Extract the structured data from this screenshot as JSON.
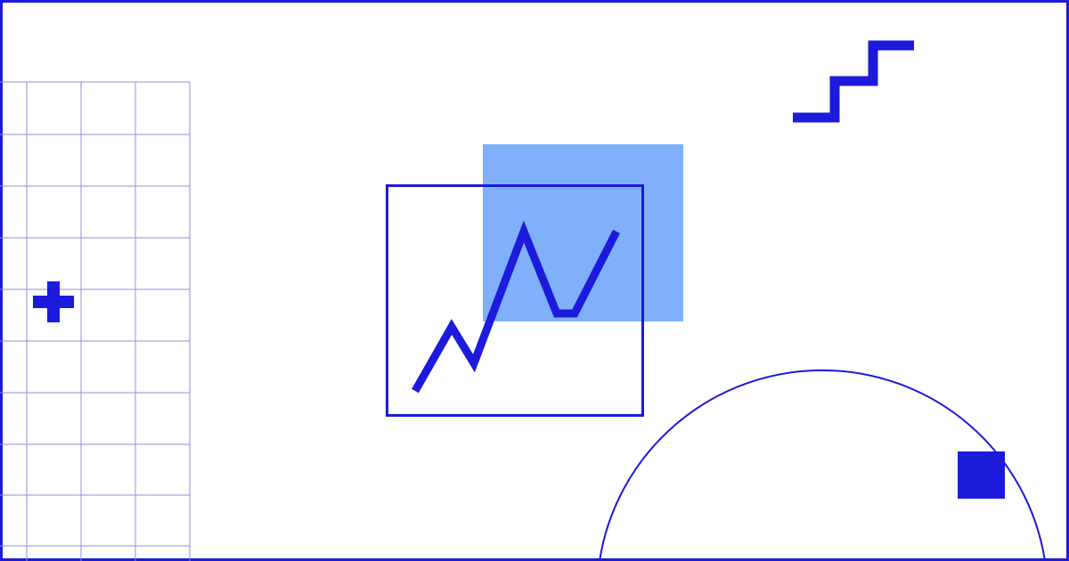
{
  "illustration": {
    "colors": {
      "background": "#ffffff",
      "primary": "#1c1adb",
      "accent_fill": "#80b0fc",
      "grid_line": "#8f8fd9"
    },
    "icons": {
      "plus": "plus-icon",
      "trend_line": "trend-line-icon",
      "staircase": "staircase-icon",
      "square": "square-icon"
    }
  }
}
